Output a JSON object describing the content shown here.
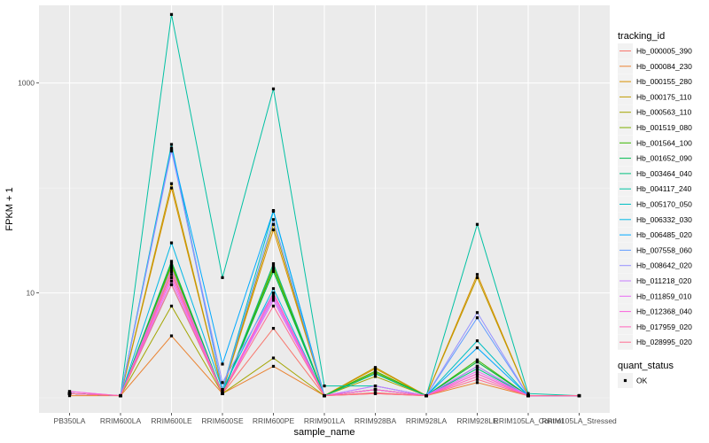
{
  "chart_data": {
    "type": "line",
    "xlabel": "sample_name",
    "ylabel": "FPKM + 1",
    "y_scale": "log10",
    "ylim": [
      0.72,
      5500
    ],
    "y_ticks": [
      10,
      1000
    ],
    "y_tick_labels": [
      "10",
      "1000"
    ],
    "categories": [
      "PB350LA",
      "RRIM600LA",
      "RRIM600LE",
      "RRIM600SE",
      "RRIM600PE",
      "RRIM901LA",
      "RRIM928BA",
      "RRIM928LA",
      "RRIM928LE",
      "RRIM105LA_Control",
      "RRIM105LA_Stressed"
    ],
    "grid": true,
    "legend_position": "right",
    "legend_title": "tracking_id",
    "series": [
      {
        "name": "Hb_000005_390",
        "color": "#F8766D",
        "values": [
          1.1,
          1.05,
          16,
          1.1,
          4.6,
          1.05,
          1.12,
          1.05,
          1.7,
          1.05,
          1.05
        ]
      },
      {
        "name": "Hb_000084_230",
        "color": "#EA8331",
        "values": [
          1.05,
          1.05,
          3.9,
          1.1,
          2.0,
          1.05,
          1.1,
          1.05,
          1.4,
          1.05,
          1.05
        ]
      },
      {
        "name": "Hb_000155_280",
        "color": "#D89000",
        "values": [
          1.1,
          1.05,
          100,
          1.15,
          40,
          1.05,
          1.9,
          1.05,
          15,
          1.05,
          1.05
        ]
      },
      {
        "name": "Hb_000175_110",
        "color": "#C09B00",
        "values": [
          1.1,
          1.05,
          110,
          1.15,
          45,
          1.05,
          1.95,
          1.05,
          14,
          1.05,
          1.05
        ]
      },
      {
        "name": "Hb_000563_110",
        "color": "#A3A500",
        "values": [
          1.1,
          1.05,
          7.5,
          1.1,
          2.4,
          1.05,
          1.6,
          1.05,
          2.0,
          1.05,
          1.05
        ]
      },
      {
        "name": "Hb_001519_080",
        "color": "#7CAE00",
        "values": [
          1.1,
          1.05,
          18,
          1.1,
          18,
          1.05,
          1.75,
          1.05,
          2.2,
          1.05,
          1.05
        ]
      },
      {
        "name": "Hb_001564_100",
        "color": "#39B600",
        "values": [
          1.1,
          1.05,
          19,
          1.1,
          17,
          1.05,
          1.8,
          1.05,
          2.3,
          1.05,
          1.05
        ]
      },
      {
        "name": "Hb_001652_090",
        "color": "#00BB4E",
        "values": [
          1.1,
          1.05,
          20,
          1.1,
          16,
          1.05,
          1.7,
          1.05,
          2.2,
          1.05,
          1.05
        ]
      },
      {
        "name": "Hb_003464_040",
        "color": "#00BF7D",
        "values": [
          1.1,
          1.05,
          12,
          1.1,
          19,
          1.05,
          1.7,
          1.05,
          1.9,
          1.05,
          1.05
        ]
      },
      {
        "name": "Hb_004117_240",
        "color": "#00C1A3",
        "values": [
          1.1,
          1.05,
          4500,
          14,
          880,
          1.3,
          1.3,
          1.05,
          45,
          1.1,
          1.05
        ]
      },
      {
        "name": "Hb_005170_050",
        "color": "#00BFC4",
        "values": [
          1.1,
          1.05,
          260,
          1.2,
          60,
          1.05,
          1.2,
          1.05,
          3.5,
          1.05,
          1.05
        ]
      },
      {
        "name": "Hb_006332_030",
        "color": "#00B8E7",
        "values": [
          1.1,
          1.05,
          30,
          1.2,
          11,
          1.05,
          1.2,
          1.05,
          2.0,
          1.05,
          1.05
        ]
      },
      {
        "name": "Hb_006485_020",
        "color": "#00A9FF",
        "values": [
          1.1,
          1.05,
          240,
          2.1,
          61,
          1.05,
          1.2,
          1.05,
          3.0,
          1.05,
          1.05
        ]
      },
      {
        "name": "Hb_007558_060",
        "color": "#619CFF",
        "values": [
          1.1,
          1.05,
          235,
          1.2,
          50,
          1.05,
          1.2,
          1.05,
          5.8,
          1.05,
          1.05
        ]
      },
      {
        "name": "Hb_008642_020",
        "color": "#9590FF",
        "values": [
          1.1,
          1.05,
          225,
          1.4,
          10,
          1.05,
          1.3,
          1.05,
          6.5,
          1.05,
          1.05
        ]
      },
      {
        "name": "Hb_011218_020",
        "color": "#C77CFF",
        "values": [
          1.1,
          1.05,
          17,
          1.1,
          9,
          1.05,
          1.3,
          1.05,
          2.0,
          1.05,
          1.05
        ]
      },
      {
        "name": "Hb_011859_010",
        "color": "#E76BF3",
        "values": [
          1.15,
          1.05,
          13,
          1.1,
          8.5,
          1.05,
          1.2,
          1.05,
          1.8,
          1.05,
          1.05
        ]
      },
      {
        "name": "Hb_012368_040",
        "color": "#FA62DB",
        "values": [
          1.15,
          1.05,
          14,
          1.1,
          9.5,
          1.05,
          1.2,
          1.05,
          1.7,
          1.05,
          1.05
        ]
      },
      {
        "name": "Hb_017959_020",
        "color": "#FF62BC",
        "values": [
          1.1,
          1.05,
          15,
          1.1,
          10,
          1.05,
          1.2,
          1.05,
          1.6,
          1.05,
          1.05
        ]
      },
      {
        "name": "Hb_028995_020",
        "color": "#FF6C91",
        "values": [
          1.1,
          1.05,
          12,
          1.1,
          7.5,
          1.05,
          1.1,
          1.05,
          1.5,
          1.05,
          1.05
        ]
      }
    ],
    "shape_legend": {
      "title": "quant_status",
      "items": [
        "OK"
      ]
    }
  }
}
